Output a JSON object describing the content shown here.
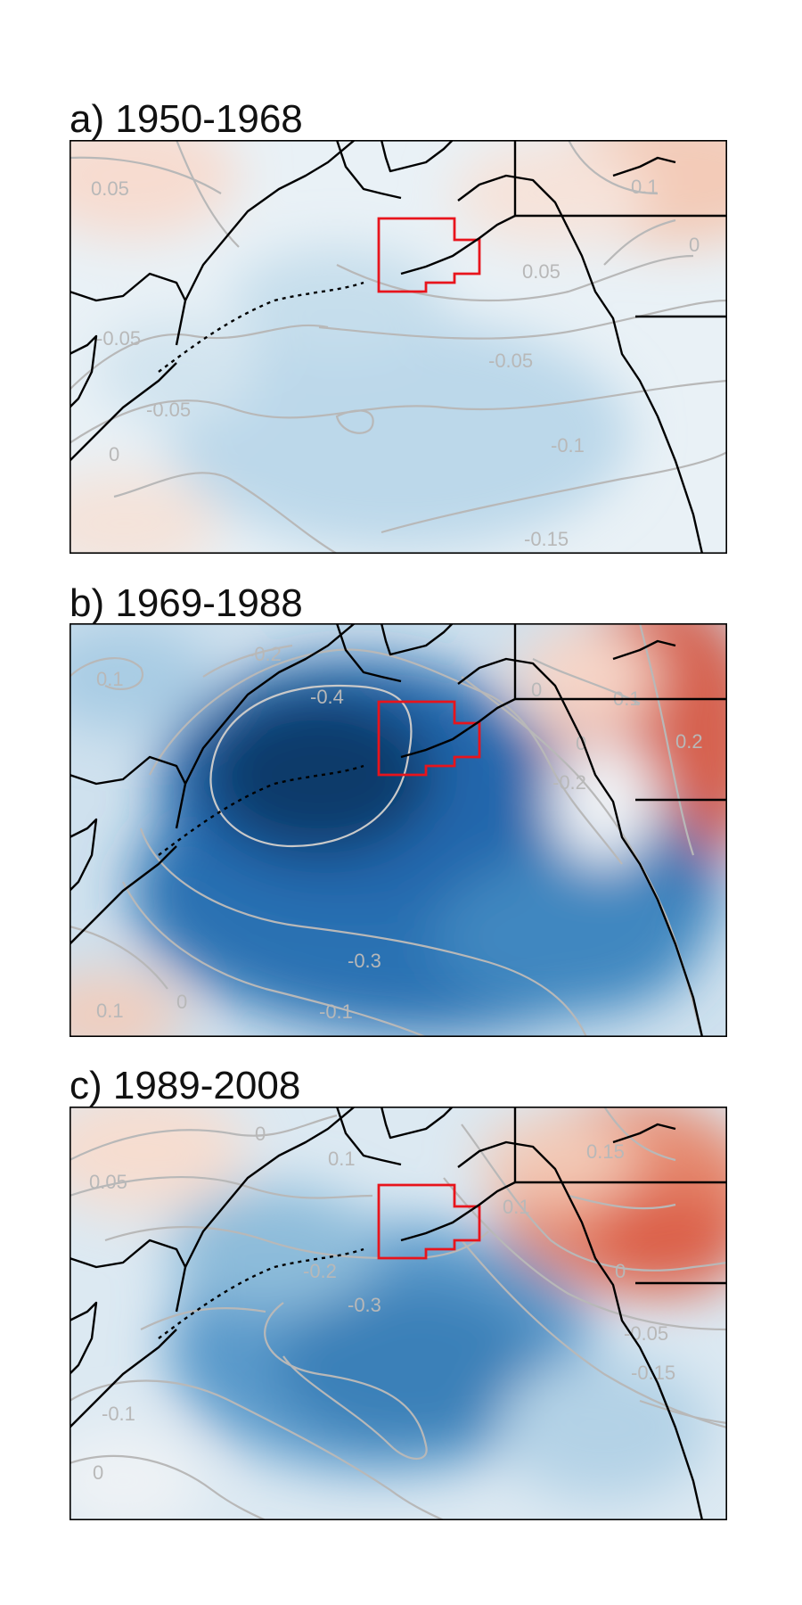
{
  "panels": [
    {
      "title": "a) 1950-1968",
      "anomaly_colors": [
        "#f4e9e4",
        "#d2e4ef",
        "#bcd8ea"
      ],
      "contour_labels": [
        "0.05",
        "0.1",
        "0",
        "0.05",
        "-0.05",
        "-0.05",
        "-0.05",
        "-0.1",
        "0",
        "-0.15"
      ]
    },
    {
      "title": "b) 1969-1988",
      "anomaly_colors": [
        "#0e3a6a",
        "#2166ac",
        "#3f87c0",
        "#d6604d"
      ],
      "contour_labels": [
        "-0.2",
        "-0.4",
        "0",
        "0.1",
        "0.2",
        "0",
        "-0.2",
        "-0.3",
        "-0.1",
        "0.1",
        "0",
        "0.1"
      ]
    },
    {
      "title": "c) 1989-2008",
      "anomaly_colors": [
        "#3a80b8",
        "#8dbcda",
        "#dc6048"
      ],
      "contour_labels": [
        "0",
        "0.05",
        "0.1",
        "0.15",
        "-0.2",
        "-0.3",
        "0",
        "-0.05",
        "-0.15",
        "0.1",
        "-0.1",
        "0"
      ]
    }
  ],
  "legend_colors": {
    "coastline": "#000000",
    "study_region": "#e8141c",
    "contour": "#b8b8b8"
  }
}
